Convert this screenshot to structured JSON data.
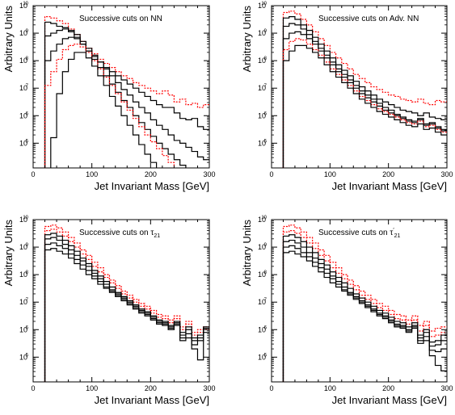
{
  "figure": {
    "description_panels": 4
  },
  "chart_data": [
    {
      "type": "line",
      "title": "Successive cuts on NN",
      "xlabel": "Jet Invariant Mass [GeV]",
      "ylabel": "Arbitrary Units",
      "xlim": [
        0,
        300
      ],
      "ylim_log10": [
        4.1,
        10
      ],
      "log_y": true,
      "x_ticks": [
        "0",
        "100",
        "200",
        "300"
      ],
      "y_ticks": [
        {
          "base": "10",
          "exp": "5"
        },
        {
          "base": "10",
          "exp": "6"
        },
        {
          "base": "10",
          "exp": "7"
        },
        {
          "base": "10",
          "exp": "8"
        },
        {
          "base": "10",
          "exp": "9"
        },
        {
          "base": "10",
          "exp": "10"
        }
      ],
      "bin_width": 10,
      "series_colors": [
        "#ff0000",
        "#000000",
        "#000000",
        "#000000",
        "#ff0000",
        "#000000"
      ],
      "series_dashed": [
        true,
        false,
        false,
        false,
        true,
        false
      ],
      "series": [
        {
          "log10_values": [
            0,
            0,
            9.6,
            9.55,
            9.45,
            9.35,
            9.15,
            8.95,
            8.7,
            8.45,
            8.25,
            8.05,
            7.9,
            7.75,
            7.6,
            7.45,
            7.35,
            7.2,
            7.1,
            7.0,
            6.9,
            6.8,
            6.9,
            6.75,
            6.5,
            6.6,
            6.4,
            6.45,
            6.3,
            6.4
          ]
        },
        {
          "log10_values": [
            0,
            0,
            9.4,
            9.35,
            9.25,
            9.2,
            9.05,
            8.85,
            8.6,
            8.35,
            8.15,
            7.95,
            7.75,
            7.6,
            7.45,
            7.3,
            7.15,
            7.0,
            6.85,
            6.7,
            6.55,
            6.4,
            6.3,
            6.3,
            6.1,
            5.9,
            5.85,
            5.9,
            5.6,
            5.5
          ]
        },
        {
          "log10_values": [
            0,
            0,
            8.9,
            9.0,
            9.1,
            9.15,
            9.1,
            8.95,
            8.7,
            8.45,
            8.2,
            7.95,
            7.7,
            7.45,
            7.2,
            6.95,
            6.75,
            6.5,
            6.3,
            6.1,
            5.85,
            5.65,
            5.5,
            5.3,
            5.1,
            5.0,
            4.85,
            4.7,
            4.5,
            4.4
          ]
        },
        {
          "log10_values": [
            0,
            0,
            8.0,
            8.35,
            8.6,
            8.8,
            8.85,
            8.8,
            8.6,
            8.35,
            8.05,
            7.75,
            7.45,
            7.15,
            6.85,
            6.55,
            6.3,
            6.0,
            5.75,
            5.5,
            5.25,
            5.0,
            4.8,
            4.6,
            4.4,
            4.2,
            0,
            0,
            0,
            0
          ]
        },
        {
          "log10_values": [
            0,
            0,
            7.1,
            7.6,
            8.05,
            8.4,
            8.55,
            8.6,
            8.5,
            8.3,
            8.0,
            7.7,
            7.4,
            7.1,
            6.8,
            6.5,
            6.2,
            5.9,
            5.6,
            5.3,
            5.05,
            4.8,
            4.55,
            4.3,
            0,
            0,
            0,
            0,
            0,
            0
          ]
        },
        {
          "log10_values": [
            0,
            0,
            0,
            5.2,
            6.8,
            7.6,
            8.05,
            8.3,
            8.3,
            8.1,
            7.8,
            7.45,
            7.1,
            6.7,
            6.35,
            6.0,
            5.65,
            5.3,
            4.95,
            4.6,
            4.3,
            0,
            0,
            0,
            0,
            0,
            0,
            0,
            0,
            0
          ]
        }
      ]
    },
    {
      "type": "line",
      "title": "Successive cuts on Adv. NN",
      "xlabel": "Jet Invariant Mass [GeV]",
      "ylabel": "Arbitrary Units",
      "xlim": [
        0,
        300
      ],
      "ylim_log10": [
        4.1,
        10
      ],
      "log_y": true,
      "x_ticks": [
        "0",
        "100",
        "200",
        "300"
      ],
      "y_ticks": [
        {
          "base": "10",
          "exp": "5"
        },
        {
          "base": "10",
          "exp": "6"
        },
        {
          "base": "10",
          "exp": "7"
        },
        {
          "base": "10",
          "exp": "8"
        },
        {
          "base": "10",
          "exp": "9"
        },
        {
          "base": "10",
          "exp": "10"
        }
      ],
      "bin_width": 10,
      "series_colors": [
        "#ff0000",
        "#000000",
        "#000000",
        "#000000",
        "#ff0000",
        "#000000"
      ],
      "series_dashed": [
        true,
        false,
        false,
        false,
        true,
        false
      ],
      "series": [
        {
          "log10_values": [
            0,
            0,
            9.75,
            9.8,
            9.7,
            9.5,
            9.3,
            9.05,
            8.8,
            8.55,
            8.3,
            8.1,
            7.9,
            7.7,
            7.5,
            7.35,
            7.2,
            7.05,
            6.95,
            6.85,
            6.75,
            6.7,
            6.6,
            6.55,
            6.5,
            6.6,
            6.45,
            6.4,
            6.55,
            6.5
          ]
        },
        {
          "log10_values": [
            0,
            0,
            9.55,
            9.6,
            9.5,
            9.3,
            9.1,
            8.85,
            8.6,
            8.35,
            8.1,
            7.85,
            7.65,
            7.45,
            7.25,
            7.05,
            6.9,
            6.75,
            6.6,
            6.5,
            6.4,
            6.3,
            6.2,
            6.15,
            6.1,
            6.0,
            6.1,
            5.95,
            5.9,
            5.85
          ]
        },
        {
          "log10_values": [
            0,
            0,
            9.25,
            9.35,
            9.3,
            9.15,
            8.95,
            8.7,
            8.45,
            8.2,
            7.95,
            7.7,
            7.5,
            7.3,
            7.1,
            6.9,
            6.75,
            6.6,
            6.45,
            6.3,
            6.2,
            6.05,
            5.95,
            5.85,
            5.8,
            5.9,
            5.7,
            5.75,
            5.6,
            5.5
          ]
        },
        {
          "log10_values": [
            0,
            0,
            8.8,
            9.0,
            9.05,
            8.95,
            8.8,
            8.6,
            8.35,
            8.1,
            7.85,
            7.6,
            7.4,
            7.2,
            7.0,
            6.8,
            6.65,
            6.5,
            6.35,
            6.2,
            6.1,
            6.0,
            5.9,
            5.8,
            5.75,
            5.85,
            5.65,
            5.7,
            5.55,
            5.45
          ]
        },
        {
          "log10_values": [
            0,
            0,
            8.4,
            8.7,
            8.8,
            8.75,
            8.6,
            8.4,
            8.2,
            7.95,
            7.7,
            7.5,
            7.3,
            7.1,
            6.9,
            6.7,
            6.55,
            6.4,
            6.25,
            6.15,
            6.05,
            5.95,
            5.85,
            5.75,
            5.7,
            5.8,
            5.6,
            5.65,
            5.5,
            5.4
          ]
        },
        {
          "log10_values": [
            0,
            0,
            8.0,
            8.35,
            8.55,
            8.55,
            8.45,
            8.3,
            8.1,
            7.85,
            7.6,
            7.4,
            7.2,
            7.0,
            6.8,
            6.6,
            6.45,
            6.3,
            6.15,
            6.05,
            5.95,
            5.85,
            5.75,
            5.65,
            5.6,
            5.7,
            5.5,
            5.55,
            5.4,
            5.3
          ]
        }
      ]
    },
    {
      "type": "line",
      "title": "Successive cuts on",
      "title_symbol": "τ",
      "title_subscript": "21",
      "title_prime": "",
      "xlabel": "Jet Invariant Mass [GeV]",
      "ylabel": "Arbitrary Units",
      "xlim": [
        0,
        300
      ],
      "ylim_log10": [
        4.1,
        10
      ],
      "log_y": true,
      "x_ticks": [
        "0",
        "100",
        "200",
        "300"
      ],
      "y_ticks": [
        {
          "base": "10",
          "exp": "5"
        },
        {
          "base": "10",
          "exp": "6"
        },
        {
          "base": "10",
          "exp": "7"
        },
        {
          "base": "10",
          "exp": "8"
        },
        {
          "base": "10",
          "exp": "9"
        },
        {
          "base": "10",
          "exp": "10"
        }
      ],
      "bin_width": 10,
      "series_colors": [
        "#ff0000",
        "#ff0000",
        "#000000",
        "#000000",
        "#000000",
        "#000000"
      ],
      "series_dashed": [
        true,
        true,
        false,
        false,
        false,
        false
      ],
      "series": [
        {
          "log10_values": [
            0,
            0,
            9.75,
            9.8,
            9.7,
            9.55,
            9.35,
            9.15,
            8.9,
            8.7,
            8.45,
            8.25,
            8.0,
            7.8,
            7.6,
            7.4,
            7.25,
            7.1,
            6.95,
            6.85,
            6.7,
            6.55,
            6.5,
            6.35,
            6.5,
            6.1,
            6.3,
            5.9,
            6.0,
            6.1
          ]
        },
        {
          "log10_values": [
            0,
            0,
            9.6,
            9.65,
            9.55,
            9.4,
            9.2,
            9.0,
            8.75,
            8.55,
            8.3,
            8.1,
            7.9,
            7.7,
            7.5,
            7.3,
            7.15,
            7.0,
            6.85,
            6.75,
            6.6,
            6.45,
            6.4,
            6.25,
            6.4,
            6.0,
            6.2,
            5.8,
            5.9,
            6.0
          ]
        },
        {
          "log10_values": [
            0,
            0,
            9.45,
            9.5,
            9.4,
            9.25,
            9.05,
            8.85,
            8.6,
            8.4,
            8.15,
            7.95,
            7.75,
            7.55,
            7.35,
            7.2,
            7.05,
            6.9,
            6.75,
            6.65,
            6.5,
            6.35,
            6.3,
            6.15,
            6.3,
            5.9,
            6.1,
            5.7,
            5.8,
            5.9
          ]
        },
        {
          "log10_values": [
            0,
            0,
            9.3,
            9.35,
            9.25,
            9.1,
            8.9,
            8.7,
            8.5,
            8.3,
            8.05,
            7.85,
            7.65,
            7.45,
            7.3,
            7.15,
            7.0,
            6.85,
            6.7,
            6.6,
            6.45,
            6.3,
            6.25,
            6.1,
            6.25,
            5.8,
            6.0,
            5.6,
            5.7,
            6.1
          ]
        },
        {
          "log10_values": [
            0,
            0,
            9.1,
            9.15,
            9.05,
            8.95,
            8.75,
            8.55,
            8.35,
            8.15,
            7.95,
            7.75,
            7.55,
            7.4,
            7.25,
            7.1,
            6.95,
            6.8,
            6.65,
            6.55,
            6.4,
            6.25,
            6.2,
            6.05,
            6.2,
            5.7,
            5.85,
            5.45,
            5.6,
            6.05
          ]
        },
        {
          "log10_values": [
            0,
            0,
            8.9,
            8.95,
            8.85,
            8.75,
            8.6,
            8.4,
            8.2,
            8.0,
            7.85,
            7.65,
            7.5,
            7.35,
            7.2,
            7.05,
            6.9,
            6.75,
            6.6,
            6.5,
            6.35,
            6.2,
            6.15,
            6.0,
            6.15,
            5.6,
            5.7,
            5.3,
            4.9,
            6.05
          ]
        }
      ]
    },
    {
      "type": "line",
      "title": "Successive cuts on",
      "title_symbol": "τ",
      "title_subscript": "21",
      "title_prime": "′",
      "xlabel": "Jet Invariant Mass [GeV]",
      "ylabel": "Arbitrary Units",
      "xlim": [
        0,
        300
      ],
      "ylim_log10": [
        4.1,
        10
      ],
      "log_y": true,
      "x_ticks": [
        "0",
        "100",
        "200",
        "300"
      ],
      "y_ticks": [
        {
          "base": "10",
          "exp": "5"
        },
        {
          "base": "10",
          "exp": "6"
        },
        {
          "base": "10",
          "exp": "7"
        },
        {
          "base": "10",
          "exp": "8"
        },
        {
          "base": "10",
          "exp": "9"
        },
        {
          "base": "10",
          "exp": "10"
        }
      ],
      "bin_width": 10,
      "series_colors": [
        "#ff0000",
        "#ff0000",
        "#000000",
        "#000000",
        "#000000",
        "#000000"
      ],
      "series_dashed": [
        true,
        true,
        false,
        false,
        false,
        false
      ],
      "series": [
        {
          "log10_values": [
            0,
            0,
            9.75,
            9.8,
            9.7,
            9.55,
            9.35,
            9.15,
            8.9,
            8.7,
            8.45,
            8.25,
            8.0,
            7.8,
            7.6,
            7.4,
            7.25,
            7.1,
            6.95,
            6.85,
            6.7,
            6.55,
            6.5,
            6.35,
            6.5,
            6.15,
            6.3,
            5.95,
            6.05,
            6.1
          ]
        },
        {
          "log10_values": [
            0,
            0,
            9.55,
            9.6,
            9.5,
            9.35,
            9.15,
            8.95,
            8.7,
            8.5,
            8.25,
            8.05,
            7.85,
            7.65,
            7.45,
            7.25,
            7.1,
            6.95,
            6.8,
            6.7,
            6.55,
            6.4,
            6.35,
            6.2,
            6.35,
            5.95,
            6.15,
            5.75,
            5.8,
            5.9
          ]
        },
        {
          "log10_values": [
            0,
            0,
            9.4,
            9.45,
            9.35,
            9.2,
            9.0,
            8.8,
            8.55,
            8.35,
            8.1,
            7.9,
            7.7,
            7.5,
            7.3,
            7.15,
            7.0,
            6.85,
            6.7,
            6.6,
            6.45,
            6.3,
            6.25,
            6.1,
            6.25,
            5.8,
            6.0,
            5.55,
            5.6,
            5.8
          ]
        },
        {
          "log10_values": [
            0,
            0,
            9.2,
            9.25,
            9.15,
            9.0,
            8.8,
            8.6,
            8.4,
            8.2,
            7.95,
            7.75,
            7.55,
            7.35,
            7.2,
            7.05,
            6.9,
            6.75,
            6.6,
            6.5,
            6.35,
            6.2,
            6.15,
            6.0,
            6.15,
            5.7,
            5.9,
            5.4,
            5.45,
            5.6
          ]
        },
        {
          "log10_values": [
            0,
            0,
            9.0,
            9.05,
            8.95,
            8.8,
            8.65,
            8.45,
            8.25,
            8.05,
            7.85,
            7.65,
            7.45,
            7.3,
            7.15,
            7.0,
            6.85,
            6.7,
            6.55,
            6.45,
            6.3,
            6.15,
            6.1,
            5.95,
            6.1,
            5.6,
            5.75,
            5.25,
            5.2,
            5.3
          ]
        },
        {
          "log10_values": [
            0,
            0,
            8.8,
            8.85,
            8.75,
            8.65,
            8.5,
            8.3,
            8.1,
            7.9,
            7.7,
            7.55,
            7.4,
            7.25,
            7.1,
            6.95,
            6.8,
            6.65,
            6.5,
            6.4,
            6.25,
            6.1,
            6.05,
            5.9,
            6.05,
            5.5,
            5.6,
            5.05,
            4.7,
            4.5
          ]
        }
      ]
    }
  ]
}
